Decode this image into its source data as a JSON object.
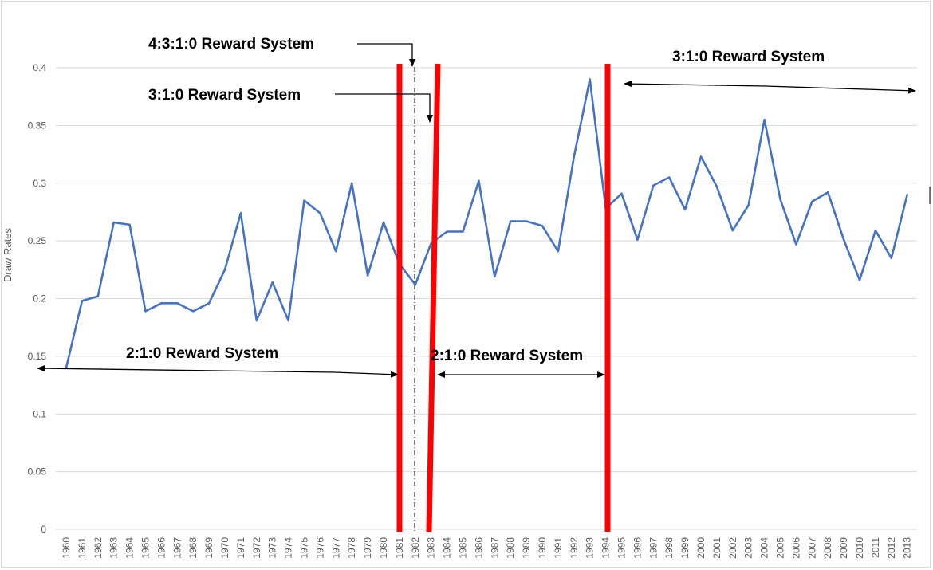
{
  "chart_data": {
    "type": "line",
    "title": "",
    "xlabel": "",
    "ylabel": "Draw Rates",
    "ylim": [
      0,
      0.4
    ],
    "yticks": [
      "0",
      "0.05",
      "0.1",
      "0.15",
      "0.2",
      "0.25",
      "0.3",
      "0.35",
      "0.4"
    ],
    "grid": true,
    "legend": "none",
    "categories": [
      "1960",
      "1961",
      "1962",
      "1963",
      "1964",
      "1965",
      "1966",
      "1967",
      "1968",
      "1969",
      "1970",
      "1971",
      "1972",
      "1973",
      "1974",
      "1975",
      "1976",
      "1977",
      "1978",
      "1979",
      "1980",
      "1981",
      "1982",
      "1983",
      "1984",
      "1985",
      "1986",
      "1987",
      "1988",
      "1989",
      "1990",
      "1991",
      "1992",
      "1993",
      "1994",
      "1995",
      "1996",
      "1997",
      "1998",
      "1999",
      "2000",
      "2001",
      "2002",
      "2003",
      "2004",
      "2005",
      "2006",
      "2007",
      "2008",
      "2009",
      "2010",
      "2011",
      "2012",
      "2013"
    ],
    "series": [
      {
        "color": "#4472c4",
        "values": [
          0.14,
          0.198,
          0.202,
          0.266,
          0.264,
          0.189,
          0.196,
          0.196,
          0.189,
          0.196,
          0.225,
          0.274,
          0.181,
          0.214,
          0.181,
          0.285,
          0.274,
          0.241,
          0.3,
          0.22,
          0.266,
          0.23,
          0.212,
          0.248,
          0.258,
          0.258,
          0.302,
          0.219,
          0.267,
          0.267,
          0.263,
          0.241,
          0.323,
          0.39,
          0.278,
          0.291,
          0.251,
          0.298,
          0.305,
          0.277,
          0.323,
          0.297,
          0.259,
          0.281,
          0.355,
          0.286,
          0.247,
          0.284,
          0.292,
          0.251,
          0.216,
          0.259,
          0.235,
          0.29
        ]
      }
    ],
    "annotations": [
      {
        "text": "4:3:1:0 Reward System"
      },
      {
        "text": "3:1:0 Reward System"
      },
      {
        "text": "3:1:0 Reward System"
      },
      {
        "text": "2:1:0 Reward System"
      },
      {
        "text": "2:1:0 Reward System"
      }
    ],
    "colors": {
      "line": "#4472c4",
      "divider": "#ff0000",
      "grid": "#d9d9d9",
      "text": "#595959"
    }
  }
}
